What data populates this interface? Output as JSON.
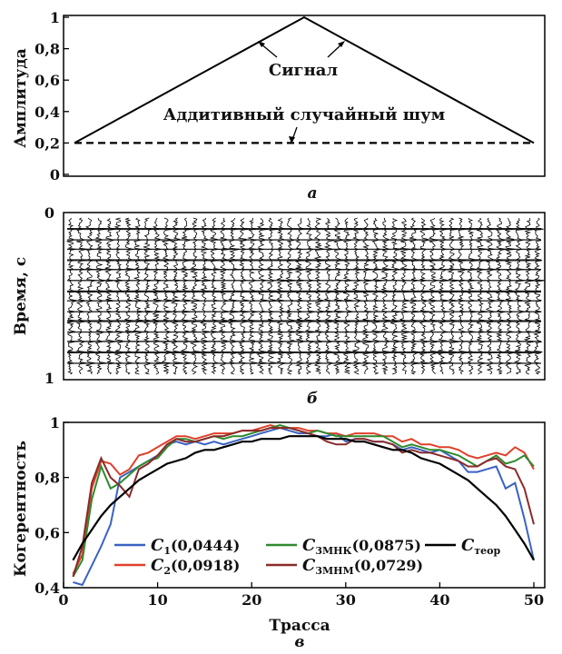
{
  "chart_data": [
    {
      "type": "line",
      "panel": "а",
      "ylabel": "Амплитуда",
      "xlim": [
        1,
        50
      ],
      "ylim": [
        0,
        1
      ],
      "yticks": [
        "0",
        "0,2",
        "0,4",
        "0,6",
        "0,8",
        "1"
      ],
      "series": [
        {
          "name": "Сигнал",
          "style": "solid",
          "x": [
            1,
            25.5,
            50
          ],
          "y": [
            0.2,
            1.0,
            0.2
          ]
        },
        {
          "name": "Аддитивный случайный шум",
          "style": "dashed",
          "x": [
            1,
            50
          ],
          "y": [
            0.2,
            0.2
          ]
        }
      ],
      "annotations": [
        "Сигнал",
        "Аддитивный случайный шум"
      ]
    },
    {
      "type": "heatmap",
      "panel": "б",
      "ylabel": "Время, с",
      "yticks": [
        "0",
        "1"
      ],
      "description": "wiggle seismogram, 50 traces"
    },
    {
      "type": "line",
      "panel": "в",
      "xlabel": "Трасса",
      "ylabel": "Когерентность",
      "xlim": [
        0,
        50
      ],
      "ylim": [
        0.4,
        1.0
      ],
      "xticks": [
        "0",
        "10",
        "20",
        "30",
        "40",
        "50"
      ],
      "yticks": [
        "0,4",
        "0,6",
        "0,8",
        "1"
      ],
      "x": [
        1,
        2,
        3,
        4,
        5,
        6,
        7,
        8,
        9,
        10,
        11,
        12,
        13,
        14,
        15,
        16,
        17,
        18,
        19,
        20,
        21,
        22,
        23,
        24,
        25,
        26,
        27,
        28,
        29,
        30,
        31,
        32,
        33,
        34,
        35,
        36,
        37,
        38,
        39,
        40,
        41,
        42,
        43,
        44,
        45,
        46,
        47,
        48,
        49,
        50
      ],
      "series": [
        {
          "name": "C1(0,0444)",
          "legend_main": "C",
          "legend_sub": "1",
          "legend_tail": "(0,0444)",
          "color": "#3a62c4",
          "values": [
            0.42,
            0.41,
            0.48,
            0.55,
            0.63,
            0.8,
            0.82,
            0.84,
            0.86,
            0.88,
            0.92,
            0.93,
            0.92,
            0.93,
            0.92,
            0.93,
            0.92,
            0.93,
            0.94,
            0.95,
            0.96,
            0.97,
            0.98,
            0.97,
            0.96,
            0.96,
            0.95,
            0.95,
            0.96,
            0.93,
            0.94,
            0.94,
            0.93,
            0.93,
            0.92,
            0.9,
            0.91,
            0.9,
            0.89,
            0.9,
            0.88,
            0.86,
            0.82,
            0.82,
            0.83,
            0.84,
            0.76,
            0.78,
            0.65,
            0.5
          ]
        },
        {
          "name": "C2(0,0918)",
          "legend_main": "C",
          "legend_sub": "2",
          "legend_tail": "(0,0918)",
          "color": "#e0402a",
          "values": [
            0.45,
            0.52,
            0.76,
            0.86,
            0.85,
            0.81,
            0.83,
            0.88,
            0.89,
            0.91,
            0.93,
            0.95,
            0.95,
            0.94,
            0.95,
            0.96,
            0.96,
            0.96,
            0.97,
            0.97,
            0.98,
            0.99,
            0.98,
            0.98,
            0.98,
            0.97,
            0.97,
            0.96,
            0.96,
            0.95,
            0.96,
            0.96,
            0.96,
            0.95,
            0.95,
            0.93,
            0.94,
            0.92,
            0.92,
            0.91,
            0.91,
            0.9,
            0.88,
            0.87,
            0.88,
            0.89,
            0.88,
            0.91,
            0.89,
            0.83
          ]
        },
        {
          "name": "C3МНК(0,0875)",
          "legend_main": "C",
          "legend_sub": "3МНК",
          "legend_tail": "(0,0875)",
          "color": "#2e8a2e",
          "values": [
            0.44,
            0.5,
            0.72,
            0.84,
            0.76,
            0.78,
            0.81,
            0.84,
            0.86,
            0.87,
            0.91,
            0.94,
            0.94,
            0.93,
            0.94,
            0.95,
            0.94,
            0.95,
            0.95,
            0.96,
            0.97,
            0.98,
            0.99,
            0.98,
            0.97,
            0.96,
            0.97,
            0.96,
            0.95,
            0.95,
            0.95,
            0.95,
            0.95,
            0.95,
            0.93,
            0.91,
            0.92,
            0.91,
            0.9,
            0.9,
            0.89,
            0.88,
            0.86,
            0.84,
            0.86,
            0.88,
            0.85,
            0.86,
            0.88,
            0.84
          ]
        },
        {
          "name": "C3МНМ(0,0729)",
          "legend_main": "C",
          "legend_sub": "3МНМ",
          "legend_tail": "(0,0729)",
          "color": "#8a2a2a",
          "values": [
            0.44,
            0.55,
            0.78,
            0.87,
            0.8,
            0.77,
            0.73,
            0.83,
            0.85,
            0.88,
            0.92,
            0.94,
            0.93,
            0.93,
            0.94,
            0.95,
            0.95,
            0.96,
            0.97,
            0.97,
            0.97,
            0.98,
            0.98,
            0.98,
            0.97,
            0.96,
            0.95,
            0.93,
            0.92,
            0.92,
            0.94,
            0.94,
            0.93,
            0.93,
            0.92,
            0.89,
            0.9,
            0.89,
            0.89,
            0.88,
            0.87,
            0.86,
            0.84,
            0.84,
            0.86,
            0.87,
            0.84,
            0.83,
            0.76,
            0.63
          ]
        },
        {
          "name": "Cтеор",
          "legend_main": "C",
          "legend_sub": "теор",
          "legend_tail": "",
          "color": "#000000",
          "values": [
            0.5,
            0.56,
            0.61,
            0.66,
            0.7,
            0.73,
            0.76,
            0.79,
            0.81,
            0.83,
            0.85,
            0.86,
            0.87,
            0.89,
            0.9,
            0.9,
            0.91,
            0.92,
            0.93,
            0.93,
            0.94,
            0.94,
            0.94,
            0.95,
            0.95,
            0.95,
            0.95,
            0.94,
            0.94,
            0.94,
            0.93,
            0.93,
            0.92,
            0.91,
            0.9,
            0.9,
            0.89,
            0.87,
            0.86,
            0.85,
            0.83,
            0.81,
            0.79,
            0.76,
            0.73,
            0.7,
            0.66,
            0.61,
            0.56,
            0.5
          ]
        }
      ]
    }
  ]
}
